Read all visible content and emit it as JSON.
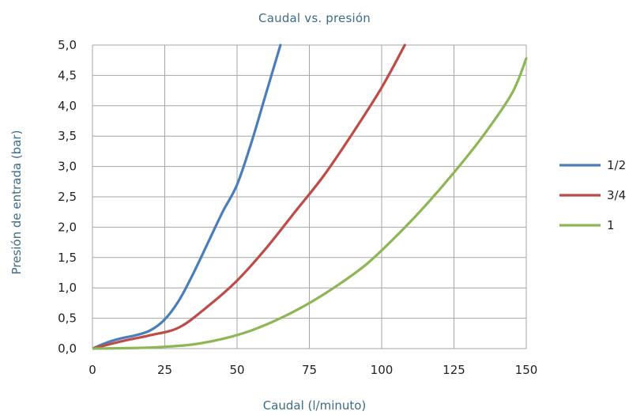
{
  "chart_data": {
    "type": "line",
    "title": "Caudal  vs. presión",
    "xlabel": "Caudal (l/minuto)",
    "ylabel": "Presión de entrada (bar)",
    "xlim": [
      0,
      150
    ],
    "ylim": [
      0,
      5
    ],
    "xticks": [
      "0",
      "25",
      "50",
      "75",
      "100",
      "125",
      "150"
    ],
    "yticks": [
      "0,0",
      "0,5",
      "1,0",
      "1,5",
      "2,0",
      "2,5",
      "3,0",
      "3,5",
      "4,0",
      "4,5",
      "5,0"
    ],
    "grid": true,
    "legend_position": "right",
    "series": [
      {
        "name": "1/2",
        "color": "#4a7ebb",
        "x": [
          0,
          5,
          10,
          15,
          20,
          25,
          30,
          35,
          40,
          45,
          50,
          55,
          60,
          65
        ],
        "y": [
          0.0,
          0.1,
          0.17,
          0.22,
          0.3,
          0.48,
          0.8,
          1.25,
          1.75,
          2.25,
          2.7,
          3.4,
          4.2,
          5.0
        ]
      },
      {
        "name": "3/4",
        "color": "#be4b48",
        "x": [
          0,
          10,
          20,
          30,
          40,
          50,
          60,
          70,
          80,
          90,
          100,
          108
        ],
        "y": [
          0.0,
          0.12,
          0.22,
          0.35,
          0.7,
          1.12,
          1.65,
          2.25,
          2.85,
          3.55,
          4.3,
          5.0
        ]
      },
      {
        "name": "1",
        "color": "#8db655",
        "x": [
          0,
          15,
          25,
          35,
          45,
          55,
          65,
          75,
          85,
          95,
          105,
          115,
          125,
          135,
          145,
          150
        ],
        "y": [
          0.0,
          0.01,
          0.03,
          0.07,
          0.16,
          0.3,
          0.5,
          0.75,
          1.05,
          1.4,
          1.85,
          2.35,
          2.9,
          3.5,
          4.2,
          4.78
        ]
      }
    ]
  }
}
